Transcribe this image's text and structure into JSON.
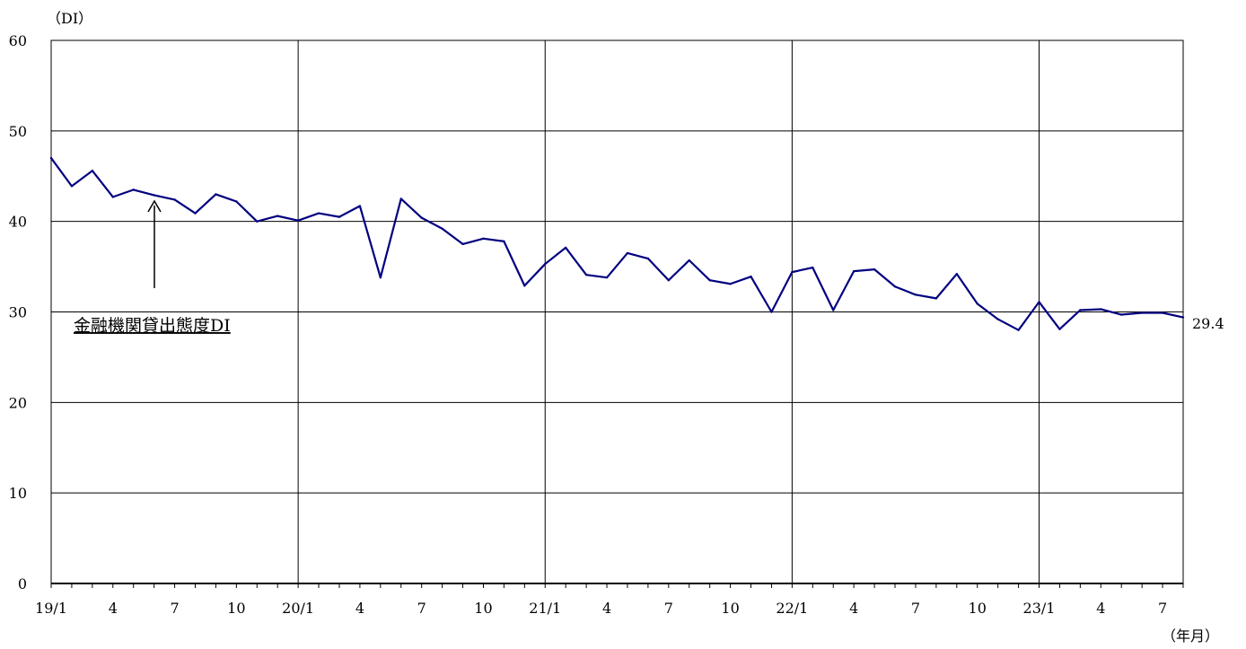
{
  "chart_data": {
    "type": "line",
    "ylabel": "（DI）",
    "xlabel": "（年月）",
    "ylim": [
      0,
      60
    ],
    "y_ticks": [
      "0",
      "10",
      "20",
      "30",
      "40",
      "50",
      "60"
    ],
    "x_tick_labels": [
      {
        "month_index": 0,
        "label": "19/1"
      },
      {
        "month_index": 3,
        "label": "4"
      },
      {
        "month_index": 6,
        "label": "7"
      },
      {
        "month_index": 9,
        "label": "10"
      },
      {
        "month_index": 12,
        "label": "20/1"
      },
      {
        "month_index": 15,
        "label": "4"
      },
      {
        "month_index": 18,
        "label": "7"
      },
      {
        "month_index": 21,
        "label": "10"
      },
      {
        "month_index": 24,
        "label": "21/1"
      },
      {
        "month_index": 27,
        "label": "4"
      },
      {
        "month_index": 30,
        "label": "7"
      },
      {
        "month_index": 33,
        "label": "10"
      },
      {
        "month_index": 36,
        "label": "22/1"
      },
      {
        "month_index": 39,
        "label": "4"
      },
      {
        "month_index": 42,
        "label": "7"
      },
      {
        "month_index": 45,
        "label": "10"
      },
      {
        "month_index": 48,
        "label": "23/1"
      },
      {
        "month_index": 51,
        "label": "4"
      },
      {
        "month_index": 54,
        "label": "7"
      }
    ],
    "year_gridline_indices": [
      12,
      24,
      36,
      48
    ],
    "series": [
      {
        "name": "金融機関貸出態度DI",
        "values": [
          47.0,
          43.9,
          45.6,
          42.7,
          43.5,
          42.9,
          42.4,
          40.9,
          43.0,
          42.2,
          40.0,
          40.6,
          40.1,
          40.9,
          40.5,
          41.7,
          33.8,
          42.5,
          40.4,
          39.2,
          37.5,
          38.1,
          37.8,
          32.9,
          35.3,
          37.1,
          34.1,
          33.8,
          36.5,
          35.9,
          33.5,
          35.7,
          33.5,
          33.1,
          33.9,
          30.0,
          34.4,
          34.9,
          30.2,
          34.5,
          34.7,
          32.8,
          31.9,
          31.5,
          34.2,
          30.9,
          29.2,
          28.0,
          31.1,
          28.1,
          30.2,
          30.3,
          29.7,
          29.9,
          29.9,
          29.4
        ]
      }
    ],
    "end_value_label": "29.4",
    "annotation": {
      "text": "金融機関貸出態度DI",
      "points_to_index": 5
    },
    "grid": true,
    "colors": {
      "line": "#000080",
      "grid": "#000000"
    }
  }
}
